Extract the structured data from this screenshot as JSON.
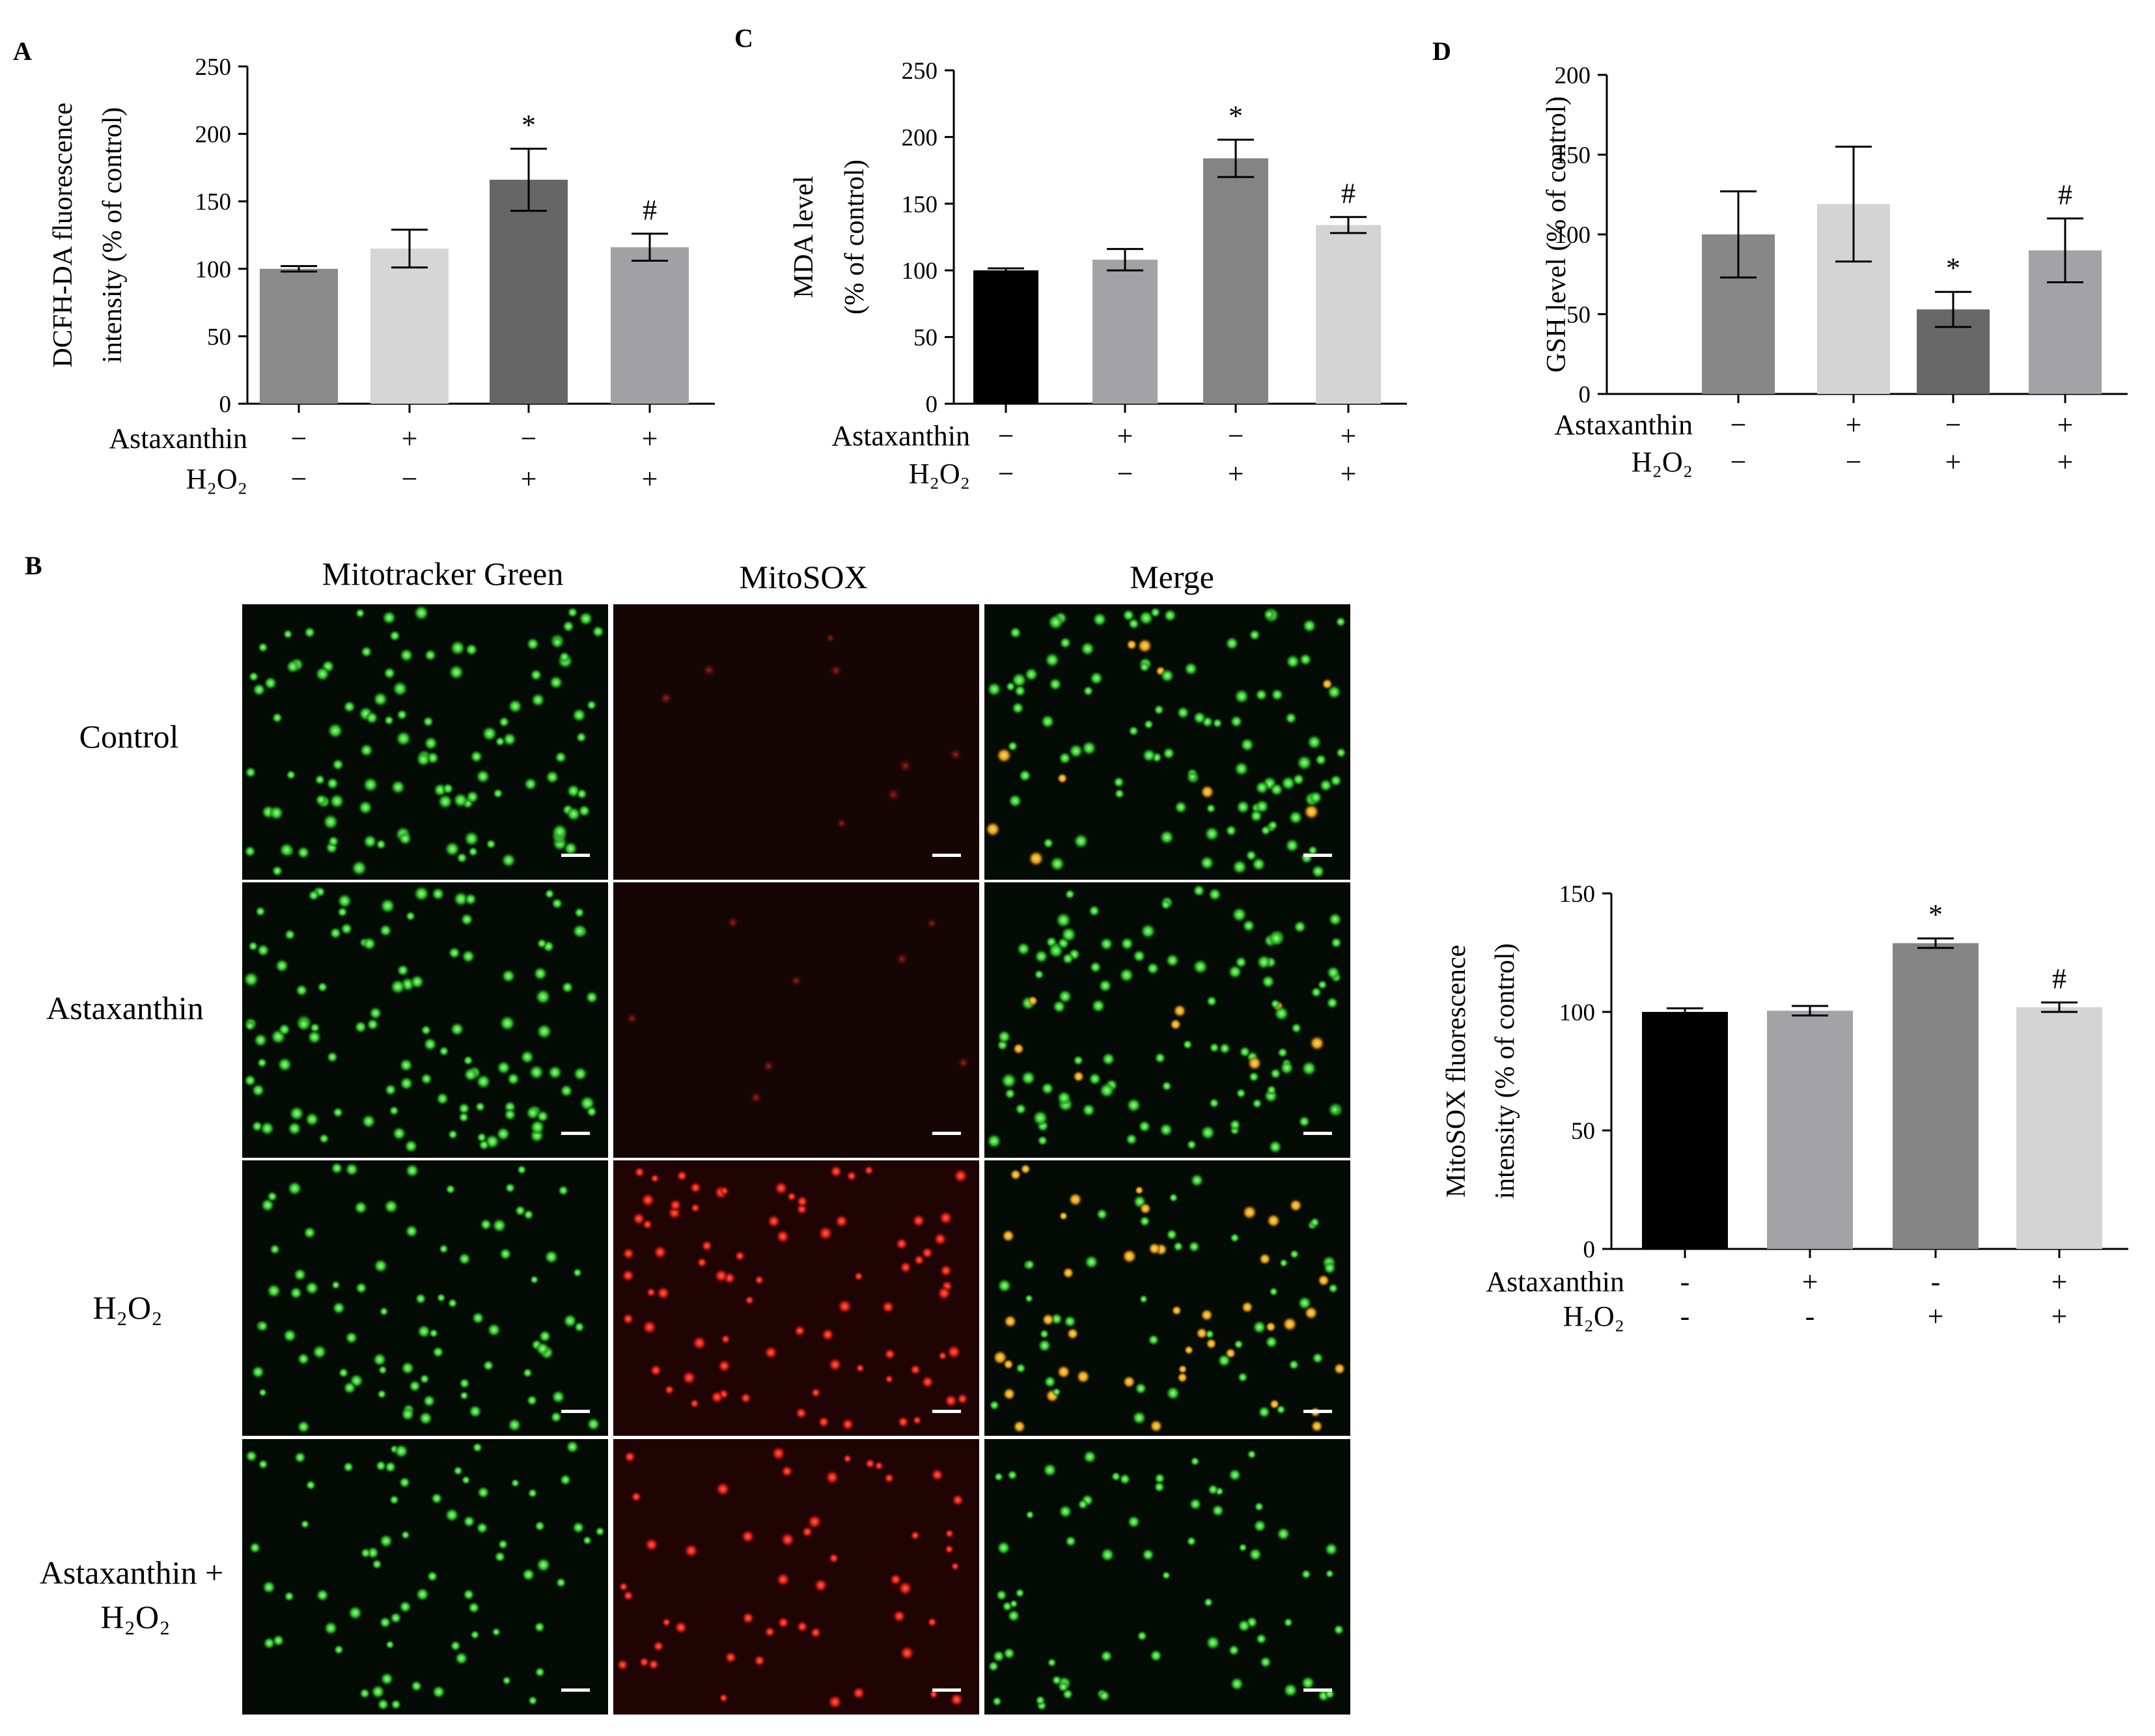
{
  "figure": {
    "panel_a_letter": "A",
    "panel_b_letter": "B",
    "panel_c_letter": "C",
    "panel_d_letter": "D",
    "microscopy": {
      "column_titles": [
        "Mitotracker Green",
        "MitoSOX",
        "Merge"
      ],
      "row_labels": [
        {
          "line1": "Control",
          "line2": ""
        },
        {
          "line1": "Astaxanthin",
          "line2": ""
        },
        {
          "line1": "H₂O₂",
          "line2": ""
        },
        {
          "line1": "Astaxanthin +",
          "line2": "H₂O₂"
        }
      ]
    }
  },
  "chart_data": [
    {
      "id": "A",
      "type": "bar",
      "ylabel_lines": [
        "DCFH-DA fluorescence",
        "intensity (% of control)"
      ],
      "ylim": [
        0,
        250
      ],
      "yticks": [
        0,
        50,
        100,
        150,
        200,
        250
      ],
      "condition_labels": [
        "Astaxanthin",
        "H₂O₂"
      ],
      "conditions": [
        [
          "−",
          "+",
          "−",
          "+"
        ],
        [
          "−",
          "−",
          "+",
          "+"
        ]
      ],
      "values": [
        100,
        115,
        166,
        116
      ],
      "errors": [
        2,
        14,
        23,
        10
      ],
      "annotations": [
        "",
        "",
        "*",
        "#"
      ],
      "colors": [
        "#8a8a8a",
        "#d6d6d6",
        "#666666",
        "#a2a2a6"
      ],
      "grid": false
    },
    {
      "id": "C",
      "type": "bar",
      "ylabel_lines": [
        "MDA level",
        "(% of control)"
      ],
      "ylim": [
        0,
        250
      ],
      "yticks": [
        0,
        50,
        100,
        150,
        200,
        250
      ],
      "condition_labels": [
        "Astaxanthin",
        "H₂O₂"
      ],
      "conditions": [
        [
          "−",
          "+",
          "−",
          "+"
        ],
        [
          "−",
          "−",
          "+",
          "+"
        ]
      ],
      "values": [
        100,
        108,
        184,
        134
      ],
      "errors": [
        1.5,
        8,
        14,
        6
      ],
      "annotations": [
        "",
        "",
        "*",
        "#"
      ],
      "colors": [
        "#000000",
        "#a3a3a7",
        "#848484",
        "#d4d4d4"
      ],
      "grid": false
    },
    {
      "id": "D",
      "type": "bar",
      "ylabel_lines": [
        "GSH level (% of control)"
      ],
      "ylim": [
        0,
        200
      ],
      "yticks": [
        0,
        50,
        100,
        150,
        200
      ],
      "condition_labels": [
        "Astaxanthin",
        "H₂O₂"
      ],
      "conditions": [
        [
          "−",
          "+",
          "−",
          "+"
        ],
        [
          "−",
          "−",
          "+",
          "+"
        ]
      ],
      "values": [
        100,
        119,
        53,
        90
      ],
      "errors": [
        27,
        36,
        11,
        20
      ],
      "annotations": [
        "",
        "",
        "*",
        "#"
      ],
      "colors": [
        "#878787",
        "#d4d4d4",
        "#686868",
        "#a3a3a7"
      ],
      "grid": false
    },
    {
      "id": "B-quant",
      "type": "bar",
      "ylabel_lines": [
        "MitoSOX fluorescence",
        "intensity (% of control)"
      ],
      "ylim": [
        0,
        150
      ],
      "yticks": [
        0,
        50,
        100,
        150
      ],
      "condition_labels": [
        "Astaxanthin",
        "H₂O₂"
      ],
      "conditions": [
        [
          "-",
          "+",
          "-",
          "+"
        ],
        [
          "-",
          "-",
          "+",
          "+"
        ]
      ],
      "values": [
        100,
        100.5,
        129,
        102
      ],
      "errors": [
        1.5,
        2,
        2,
        2
      ],
      "annotations": [
        "",
        "",
        "*",
        "#"
      ],
      "colors": [
        "#000000",
        "#a3a3a7",
        "#858585",
        "#d4d4d4"
      ],
      "grid": false
    }
  ]
}
